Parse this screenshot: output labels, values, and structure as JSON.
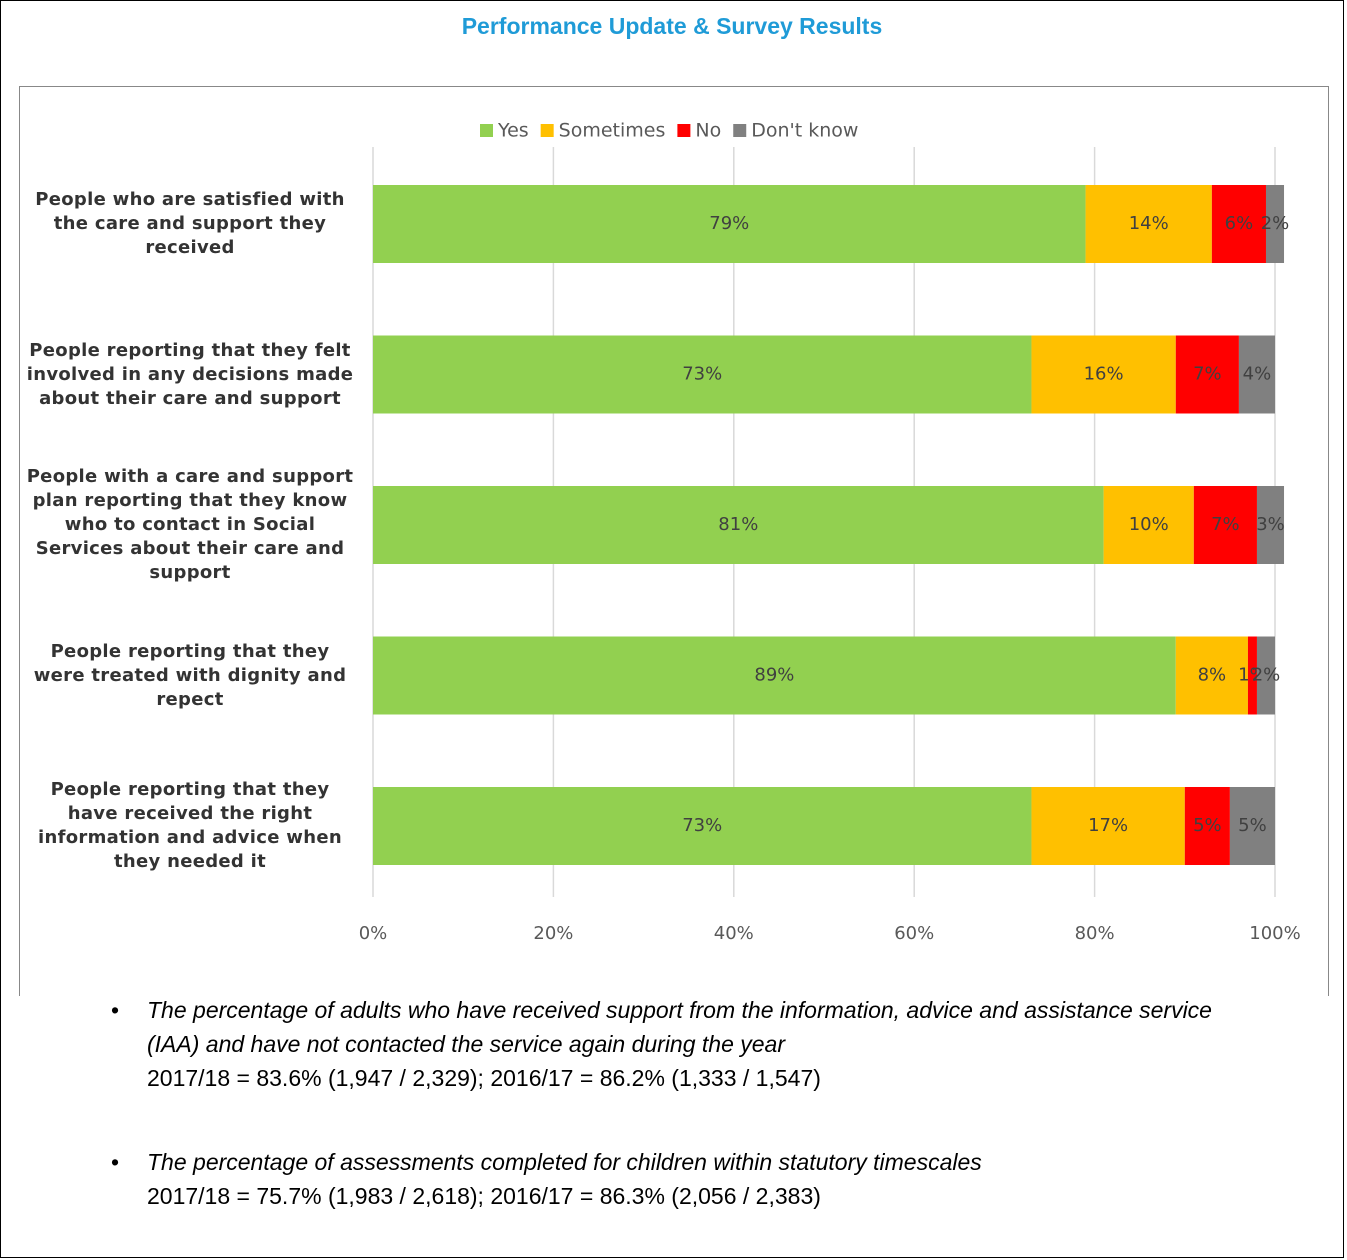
{
  "header": {
    "title": "Performance Update & Survey Results"
  },
  "chart_data": {
    "type": "stacked-bar-horizontal",
    "categories": [
      "People who are satisfied with the care and support they received",
      "People reporting that they felt involved in any decisions made about their care and support",
      "People with a care and support plan reporting that they know who to contact in Social Services about their care and support",
      "People reporting that they were treated with dignity and repect",
      "People reporting that they have received the right information and advice when they needed it"
    ],
    "series": [
      {
        "name": "Yes",
        "color": "#92d050",
        "values": [
          79,
          73,
          81,
          89,
          73
        ],
        "value_labels": [
          "79%",
          "73%",
          "81%",
          "89%",
          "73%"
        ]
      },
      {
        "name": "Sometimes",
        "color": "#ffc000",
        "values": [
          14,
          16,
          10,
          8,
          17
        ],
        "value_labels": [
          "14%",
          "16%",
          "10%",
          "8%",
          "17%"
        ]
      },
      {
        "name": "No",
        "color": "#ff0000",
        "values": [
          6,
          7,
          7,
          1,
          5
        ],
        "value_labels": [
          "6%",
          "7%",
          "7%",
          "1%",
          "5%"
        ]
      },
      {
        "name": "Don't know",
        "color": "#808080",
        "values": [
          2,
          4,
          3,
          2,
          5
        ],
        "value_labels": [
          "2%",
          "4%",
          "3%",
          "2%",
          "5%"
        ]
      }
    ],
    "xlim": [
      0,
      100
    ],
    "xticks": [
      {
        "value": 0,
        "label": "0%"
      },
      {
        "value": 20,
        "label": "20%"
      },
      {
        "value": 40,
        "label": "40%"
      },
      {
        "value": 60,
        "label": "60%"
      },
      {
        "value": 80,
        "label": "80%"
      },
      {
        "value": 100,
        "label": "100%"
      }
    ],
    "grid": true,
    "legend": "top"
  },
  "bullets": [
    {
      "text": "The percentage of adults who have received support from the information, advice and assistance service (IAA) and have not contacted the service again during the year",
      "detail": "2017/18 = 83.6% (1,947 / 2,329); 2016/17 = 86.2% (1,333 / 1,547)"
    },
    {
      "text": "The percentage of assessments completed for children within statutory timescales",
      "detail": "2017/18 = 75.7% (1,983 / 2,618); 2016/17 = 86.3% (2,056 / 2,383)"
    }
  ]
}
